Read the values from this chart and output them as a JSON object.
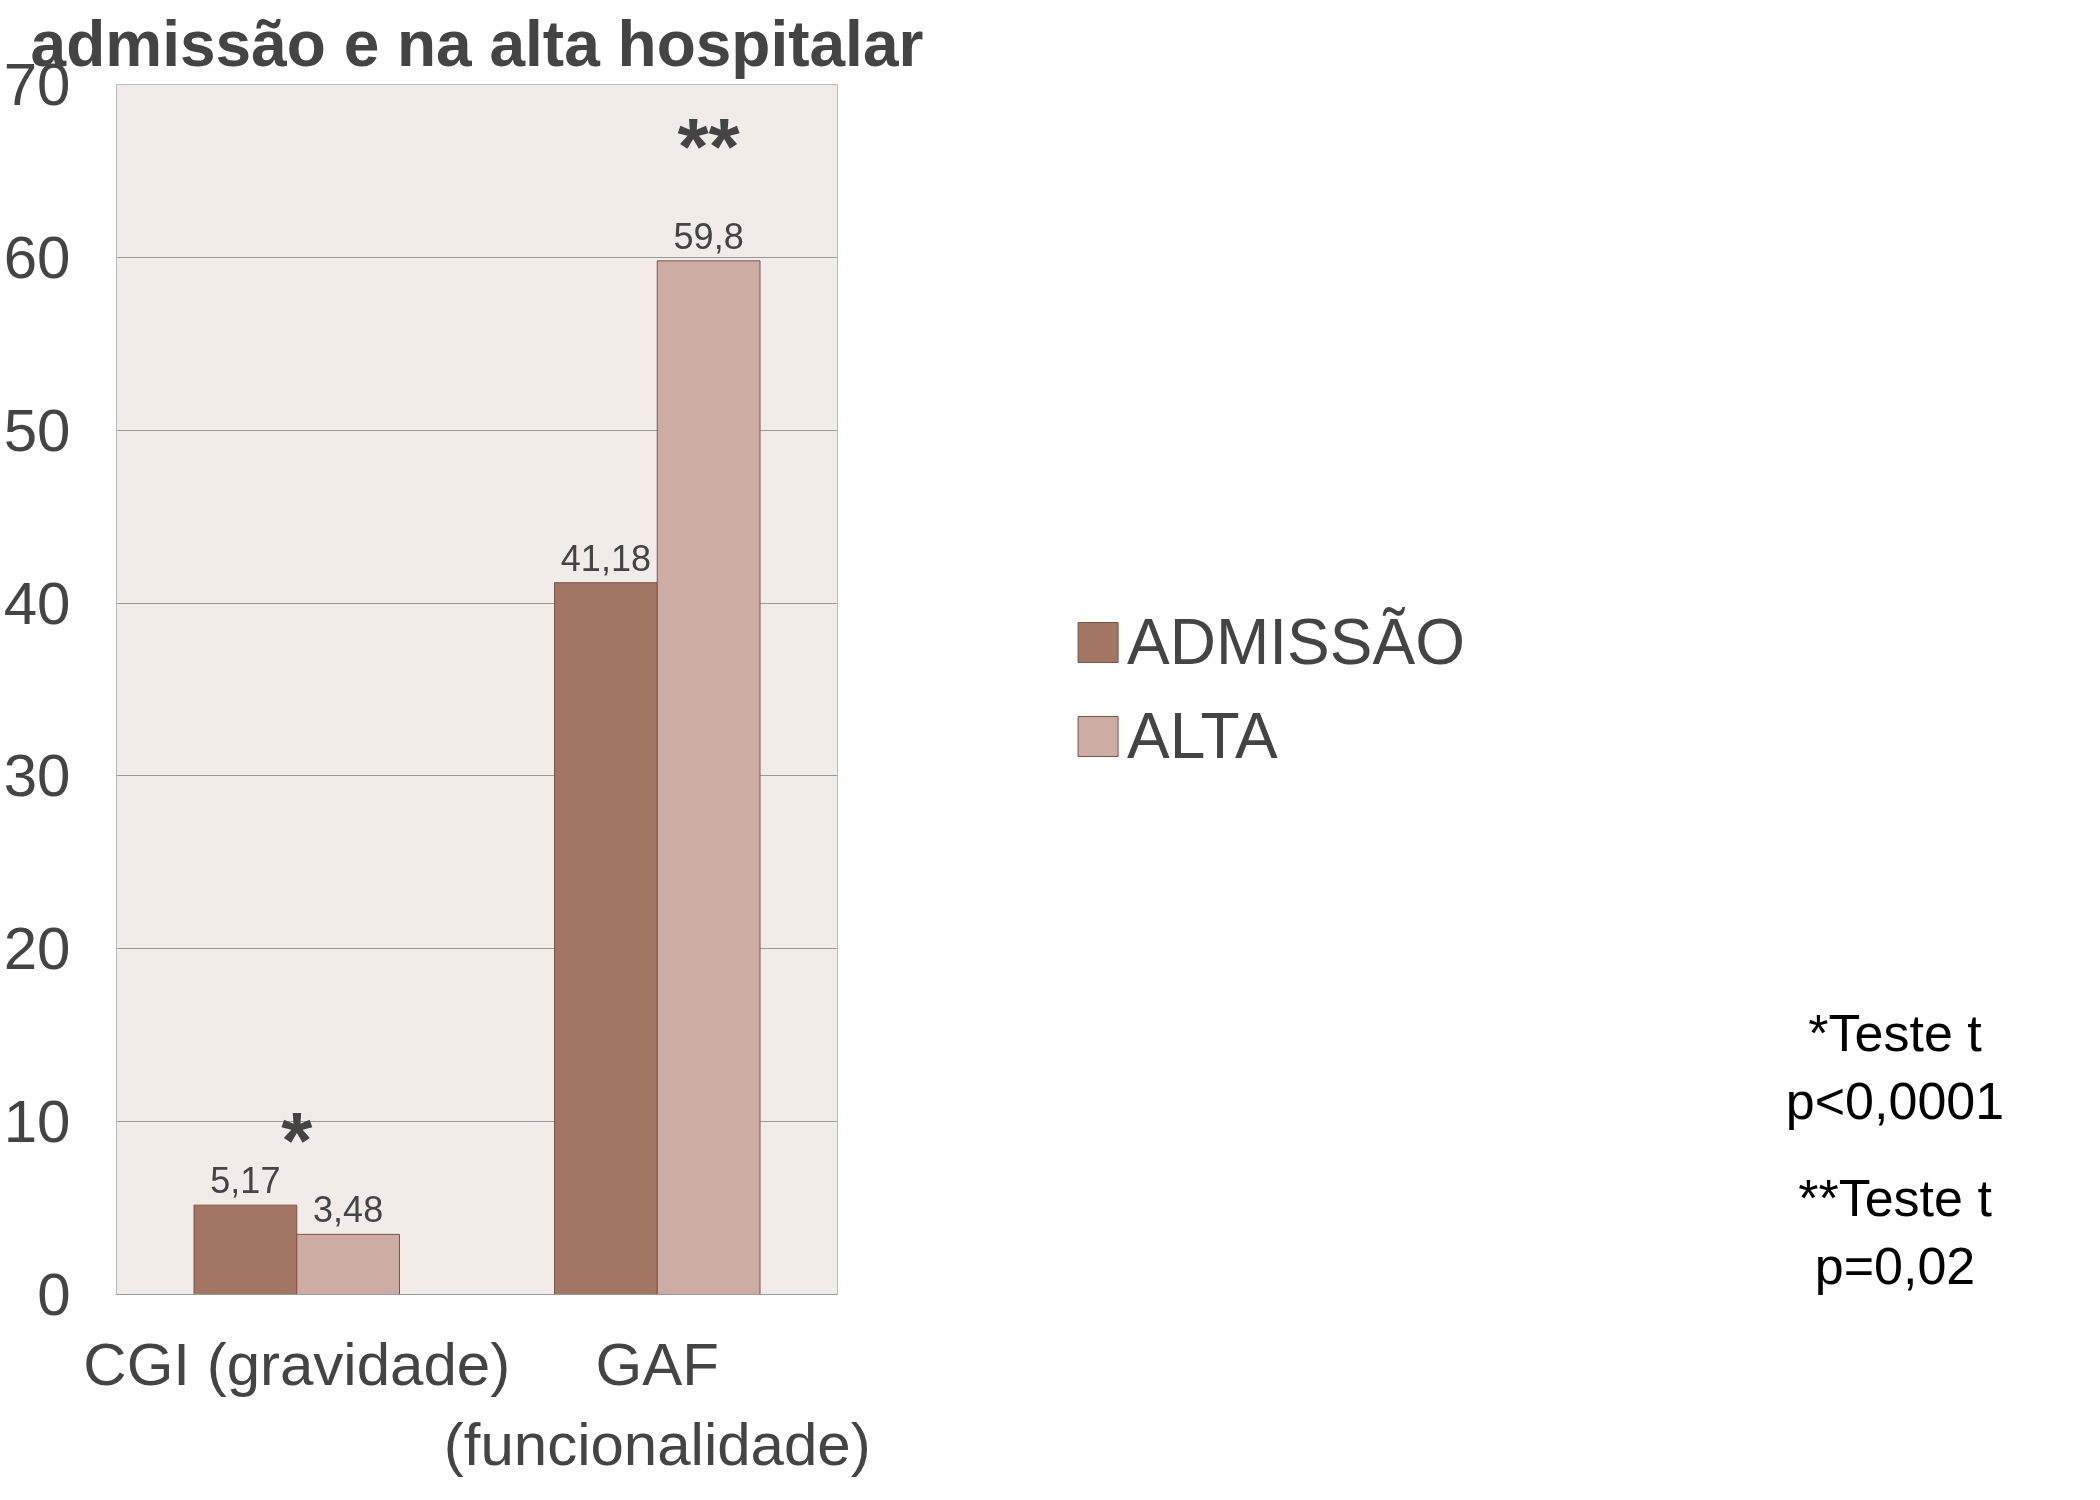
{
  "chart_data": {
    "type": "bar",
    "title": "admissão e na alta hospitalar",
    "categories": [
      "CGI (gravidade)",
      "GAF (funcionalidade)"
    ],
    "series": [
      {
        "name": "ADMISSÃO",
        "color": "#a37563",
        "values": [
          5.17,
          41.18
        ],
        "value_labels": [
          "5,17",
          "41,18"
        ]
      },
      {
        "name": "ALTA",
        "color": "#cdaca3",
        "values": [
          3.48,
          59.8
        ],
        "value_labels": [
          "3,48",
          "59,8"
        ]
      }
    ],
    "ylim": [
      0,
      70
    ],
    "yticks": [
      0,
      10,
      20,
      30,
      40,
      50,
      60,
      70
    ],
    "grid": "y",
    "legend": "right",
    "annotations": [
      "*",
      "**",
      "*Teste t\np<0,0001",
      "**Teste t\np=0,02"
    ]
  }
}
